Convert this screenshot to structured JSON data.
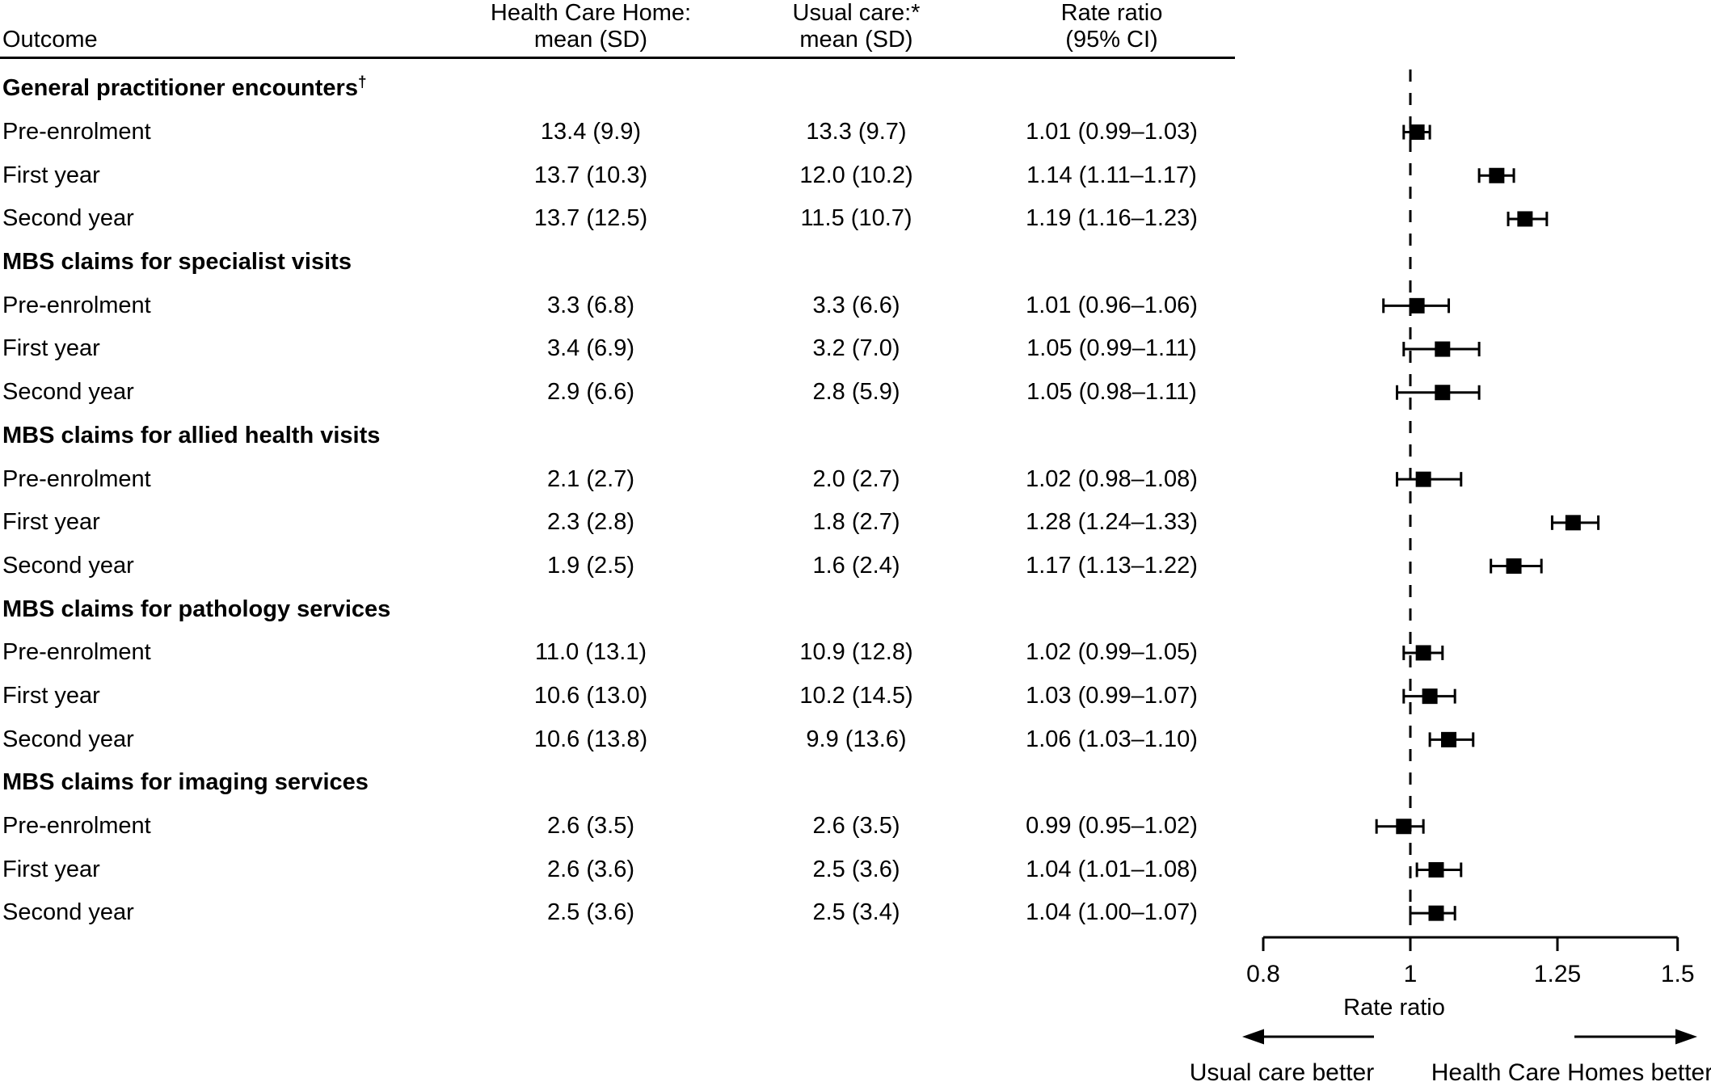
{
  "figure": {
    "background": "#ffffff",
    "text_color": "#000000",
    "marker_color": "#000000"
  },
  "table": {
    "header": {
      "outcome": "Outcome",
      "col2_line1": "Health Care Home:",
      "col2_line2": "mean (SD)",
      "col3_line1": "Usual care:*",
      "col3_line2": "mean (SD)",
      "col4_line1": "Rate ratio",
      "col4_line2": "(95% CI)"
    },
    "groups": [
      {
        "heading": "General practitioner encounters",
        "dagger": "†",
        "rows": [
          {
            "label": "Pre-enrolment",
            "hch_mean_sd": "13.4 (9.9)",
            "usual_mean_sd": "13.3 (9.7)",
            "rate_ratio_ci": "1.01 (0.99–1.03)"
          },
          {
            "label": "First year",
            "hch_mean_sd": "13.7 (10.3)",
            "usual_mean_sd": "12.0 (10.2)",
            "rate_ratio_ci": "1.14 (1.11–1.17)"
          },
          {
            "label": "Second year",
            "hch_mean_sd": "13.7 (12.5)",
            "usual_mean_sd": "11.5 (10.7)",
            "rate_ratio_ci": "1.19 (1.16–1.23)"
          }
        ]
      },
      {
        "heading": "MBS claims for specialist visits",
        "dagger": "",
        "rows": [
          {
            "label": "Pre-enrolment",
            "hch_mean_sd": "3.3 (6.8)",
            "usual_mean_sd": "3.3 (6.6)",
            "rate_ratio_ci": "1.01 (0.96–1.06)"
          },
          {
            "label": "First year",
            "hch_mean_sd": "3.4 (6.9)",
            "usual_mean_sd": "3.2 (7.0)",
            "rate_ratio_ci": "1.05 (0.99–1.11)"
          },
          {
            "label": "Second year",
            "hch_mean_sd": "2.9 (6.6)",
            "usual_mean_sd": "2.8 (5.9)",
            "rate_ratio_ci": "1.05 (0.98–1.11)"
          }
        ]
      },
      {
        "heading": "MBS claims for allied health visits",
        "dagger": "",
        "rows": [
          {
            "label": "Pre-enrolment",
            "hch_mean_sd": "2.1 (2.7)",
            "usual_mean_sd": "2.0 (2.7)",
            "rate_ratio_ci": "1.02 (0.98–1.08)"
          },
          {
            "label": "First year",
            "hch_mean_sd": "2.3 (2.8)",
            "usual_mean_sd": "1.8 (2.7)",
            "rate_ratio_ci": "1.28 (1.24–1.33)"
          },
          {
            "label": "Second year",
            "hch_mean_sd": "1.9 (2.5)",
            "usual_mean_sd": "1.6 (2.4)",
            "rate_ratio_ci": "1.17 (1.13–1.22)"
          }
        ]
      },
      {
        "heading": "MBS claims for pathology services",
        "dagger": "",
        "rows": [
          {
            "label": "Pre-enrolment",
            "hch_mean_sd": "11.0 (13.1)",
            "usual_mean_sd": "10.9 (12.8)",
            "rate_ratio_ci": "1.02 (0.99–1.05)"
          },
          {
            "label": "First year",
            "hch_mean_sd": "10.6 (13.0)",
            "usual_mean_sd": "10.2 (14.5)",
            "rate_ratio_ci": "1.03 (0.99–1.07)"
          },
          {
            "label": "Second year",
            "hch_mean_sd": "10.6 (13.8)",
            "usual_mean_sd": "9.9 (13.6)",
            "rate_ratio_ci": "1.06 (1.03–1.10)"
          }
        ]
      },
      {
        "heading": "MBS claims for imaging services",
        "dagger": "",
        "rows": [
          {
            "label": "Pre-enrolment",
            "hch_mean_sd": "2.6 (3.5)",
            "usual_mean_sd": "2.6 (3.5)",
            "rate_ratio_ci": "0.99 (0.95–1.02)"
          },
          {
            "label": "First year",
            "hch_mean_sd": "2.6 (3.6)",
            "usual_mean_sd": "2.5 (3.6)",
            "rate_ratio_ci": "1.04 (1.01–1.08)"
          },
          {
            "label": "Second year",
            "hch_mean_sd": "2.5 (3.6)",
            "usual_mean_sd": "2.5 (3.4)",
            "rate_ratio_ci": "1.04 (1.00–1.07)"
          }
        ]
      }
    ]
  },
  "chart_data": {
    "type": "scatter",
    "subtype": "forest-plot",
    "x_scale": "log",
    "x_range": [
      0.8,
      1.5
    ],
    "x_ticks": [
      0.8,
      1,
      1.25,
      1.5
    ],
    "x_tick_labels": [
      "0.8",
      "1",
      "1.25",
      "1.5"
    ],
    "reference_line": 1,
    "axis_label": "Rate ratio",
    "left_direction_label": "Usual care better",
    "right_direction_label": "Health Care Homes better",
    "marker_color": "#000000",
    "points": [
      {
        "group": "General practitioner encounters",
        "label": "Pre-enrolment",
        "rr": 1.01,
        "ci_low": 0.99,
        "ci_high": 1.03
      },
      {
        "group": "General practitioner encounters",
        "label": "First year",
        "rr": 1.14,
        "ci_low": 1.11,
        "ci_high": 1.17
      },
      {
        "group": "General practitioner encounters",
        "label": "Second year",
        "rr": 1.19,
        "ci_low": 1.16,
        "ci_high": 1.23
      },
      {
        "group": "MBS claims for specialist visits",
        "label": "Pre-enrolment",
        "rr": 1.01,
        "ci_low": 0.96,
        "ci_high": 1.06
      },
      {
        "group": "MBS claims for specialist visits",
        "label": "First year",
        "rr": 1.05,
        "ci_low": 0.99,
        "ci_high": 1.11
      },
      {
        "group": "MBS claims for specialist visits",
        "label": "Second year",
        "rr": 1.05,
        "ci_low": 0.98,
        "ci_high": 1.11
      },
      {
        "group": "MBS claims for allied health visits",
        "label": "Pre-enrolment",
        "rr": 1.02,
        "ci_low": 0.98,
        "ci_high": 1.08
      },
      {
        "group": "MBS claims for allied health visits",
        "label": "First year",
        "rr": 1.28,
        "ci_low": 1.24,
        "ci_high": 1.33
      },
      {
        "group": "MBS claims for allied health visits",
        "label": "Second year",
        "rr": 1.17,
        "ci_low": 1.13,
        "ci_high": 1.22
      },
      {
        "group": "MBS claims for pathology services",
        "label": "Pre-enrolment",
        "rr": 1.02,
        "ci_low": 0.99,
        "ci_high": 1.05
      },
      {
        "group": "MBS claims for pathology services",
        "label": "First year",
        "rr": 1.03,
        "ci_low": 0.99,
        "ci_high": 1.07
      },
      {
        "group": "MBS claims for pathology services",
        "label": "Second year",
        "rr": 1.06,
        "ci_low": 1.03,
        "ci_high": 1.1
      },
      {
        "group": "MBS claims for imaging services",
        "label": "Pre-enrolment",
        "rr": 0.99,
        "ci_low": 0.95,
        "ci_high": 1.02
      },
      {
        "group": "MBS claims for imaging services",
        "label": "First year",
        "rr": 1.04,
        "ci_low": 1.01,
        "ci_high": 1.08
      },
      {
        "group": "MBS claims for imaging services",
        "label": "Second year",
        "rr": 1.04,
        "ci_low": 1.0,
        "ci_high": 1.07
      }
    ]
  }
}
